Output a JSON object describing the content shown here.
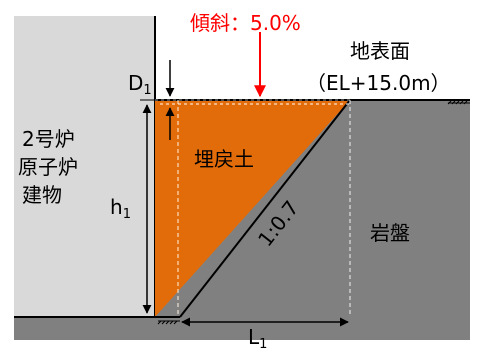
{
  "slope_label": "傾斜：5.0%",
  "ground_surface": "地表面",
  "elevation": "（EL+15.0m）",
  "building_line1": "2号炉",
  "building_line2": "原子炉",
  "building_line3": "建物",
  "backfill_label": "埋戻土",
  "bedrock_label": "岩盤",
  "slope_ratio": "1:0.7",
  "dim_d": {
    "main": "D",
    "sub": "1"
  },
  "dim_h": {
    "main": "h",
    "sub": "1"
  },
  "dim_l": {
    "main": "L",
    "sub": "1"
  },
  "colors": {
    "building": "#d9d9d9",
    "bedrock": "#808080",
    "backfill": "#e36c0a",
    "slope_text": "#ff0000"
  }
}
